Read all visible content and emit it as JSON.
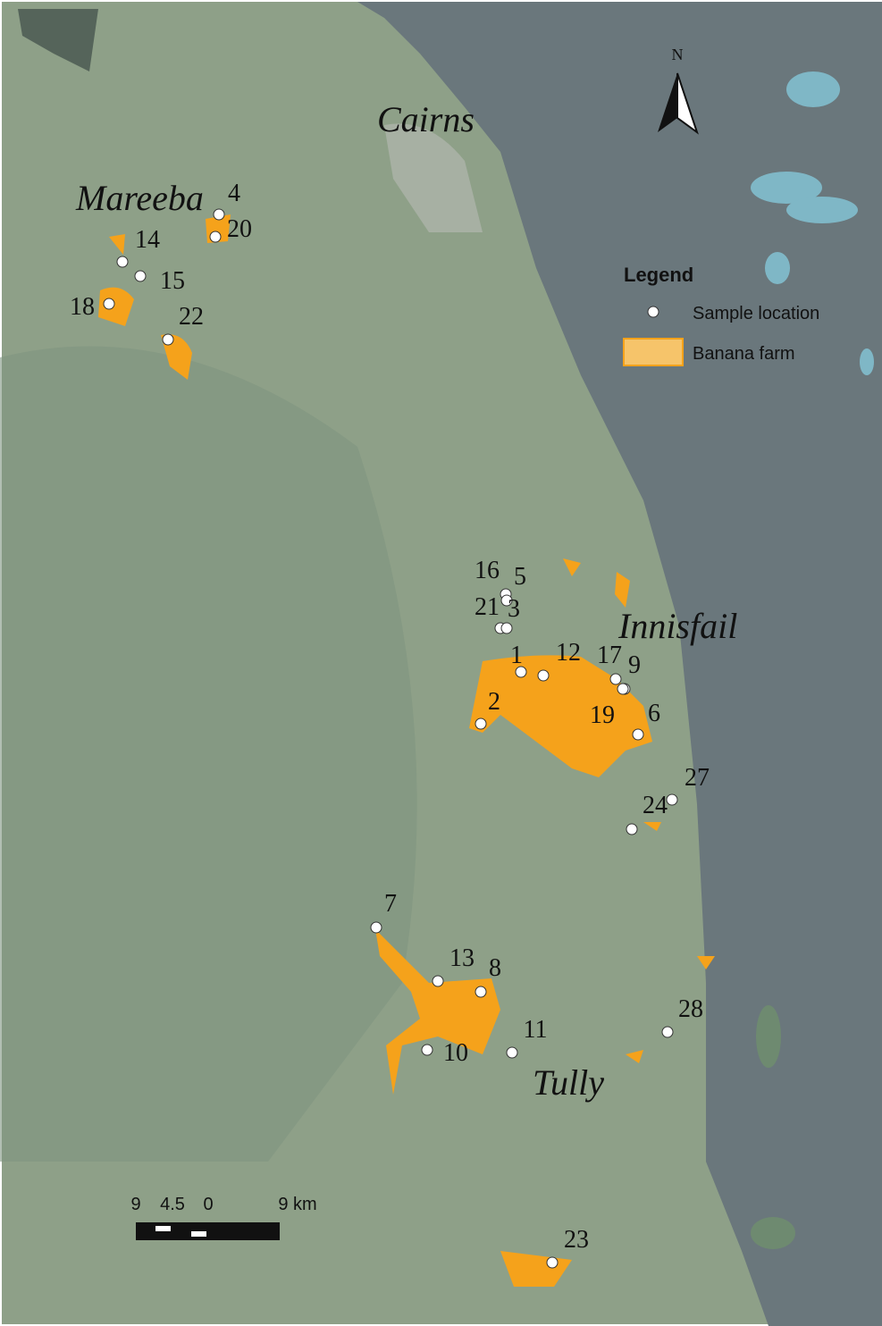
{
  "towns": [
    "Cairns",
    "Mareeba",
    "Innisfail",
    "Tully"
  ],
  "north": "N",
  "legend": {
    "title": "Legend",
    "items": [
      "Sample location",
      "Banana farm"
    ]
  },
  "scale_bar": {
    "labels": [
      "9",
      "4.5",
      "0",
      "9 km"
    ]
  },
  "samples": [
    "4",
    "20",
    "14",
    "15",
    "18",
    "22",
    "16",
    "5",
    "21",
    "3",
    "1",
    "12",
    "17",
    "9",
    "19",
    "2",
    "6",
    "27",
    "24",
    "7",
    "13",
    "8",
    "11",
    "10",
    "28",
    "23"
  ]
}
